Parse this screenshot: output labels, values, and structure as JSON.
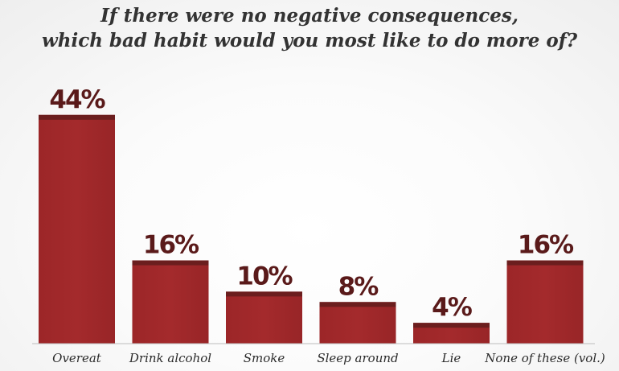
{
  "chart_data": {
    "type": "bar",
    "title_line1": "If there were no negative consequences,",
    "title_line2": "which bad habit would you most like to do more of?",
    "categories": [
      "Overeat",
      "Drink alcohol",
      "Smoke",
      "Sleep around",
      "Lie",
      "None of these (vol.)"
    ],
    "values": [
      44,
      16,
      10,
      8,
      4,
      16
    ],
    "value_labels": [
      "44%",
      "16%",
      "10%",
      "8%",
      "4%",
      "16%"
    ],
    "ylim": [
      0,
      50
    ],
    "grid": false,
    "legend": "none"
  },
  "colors": {
    "bar_fill": "#a42a2c",
    "bar_cap": "#6b1e1e",
    "value_text": "#5a1a1a",
    "baseline": "#bdbdbd",
    "title_text": "#333333"
  }
}
